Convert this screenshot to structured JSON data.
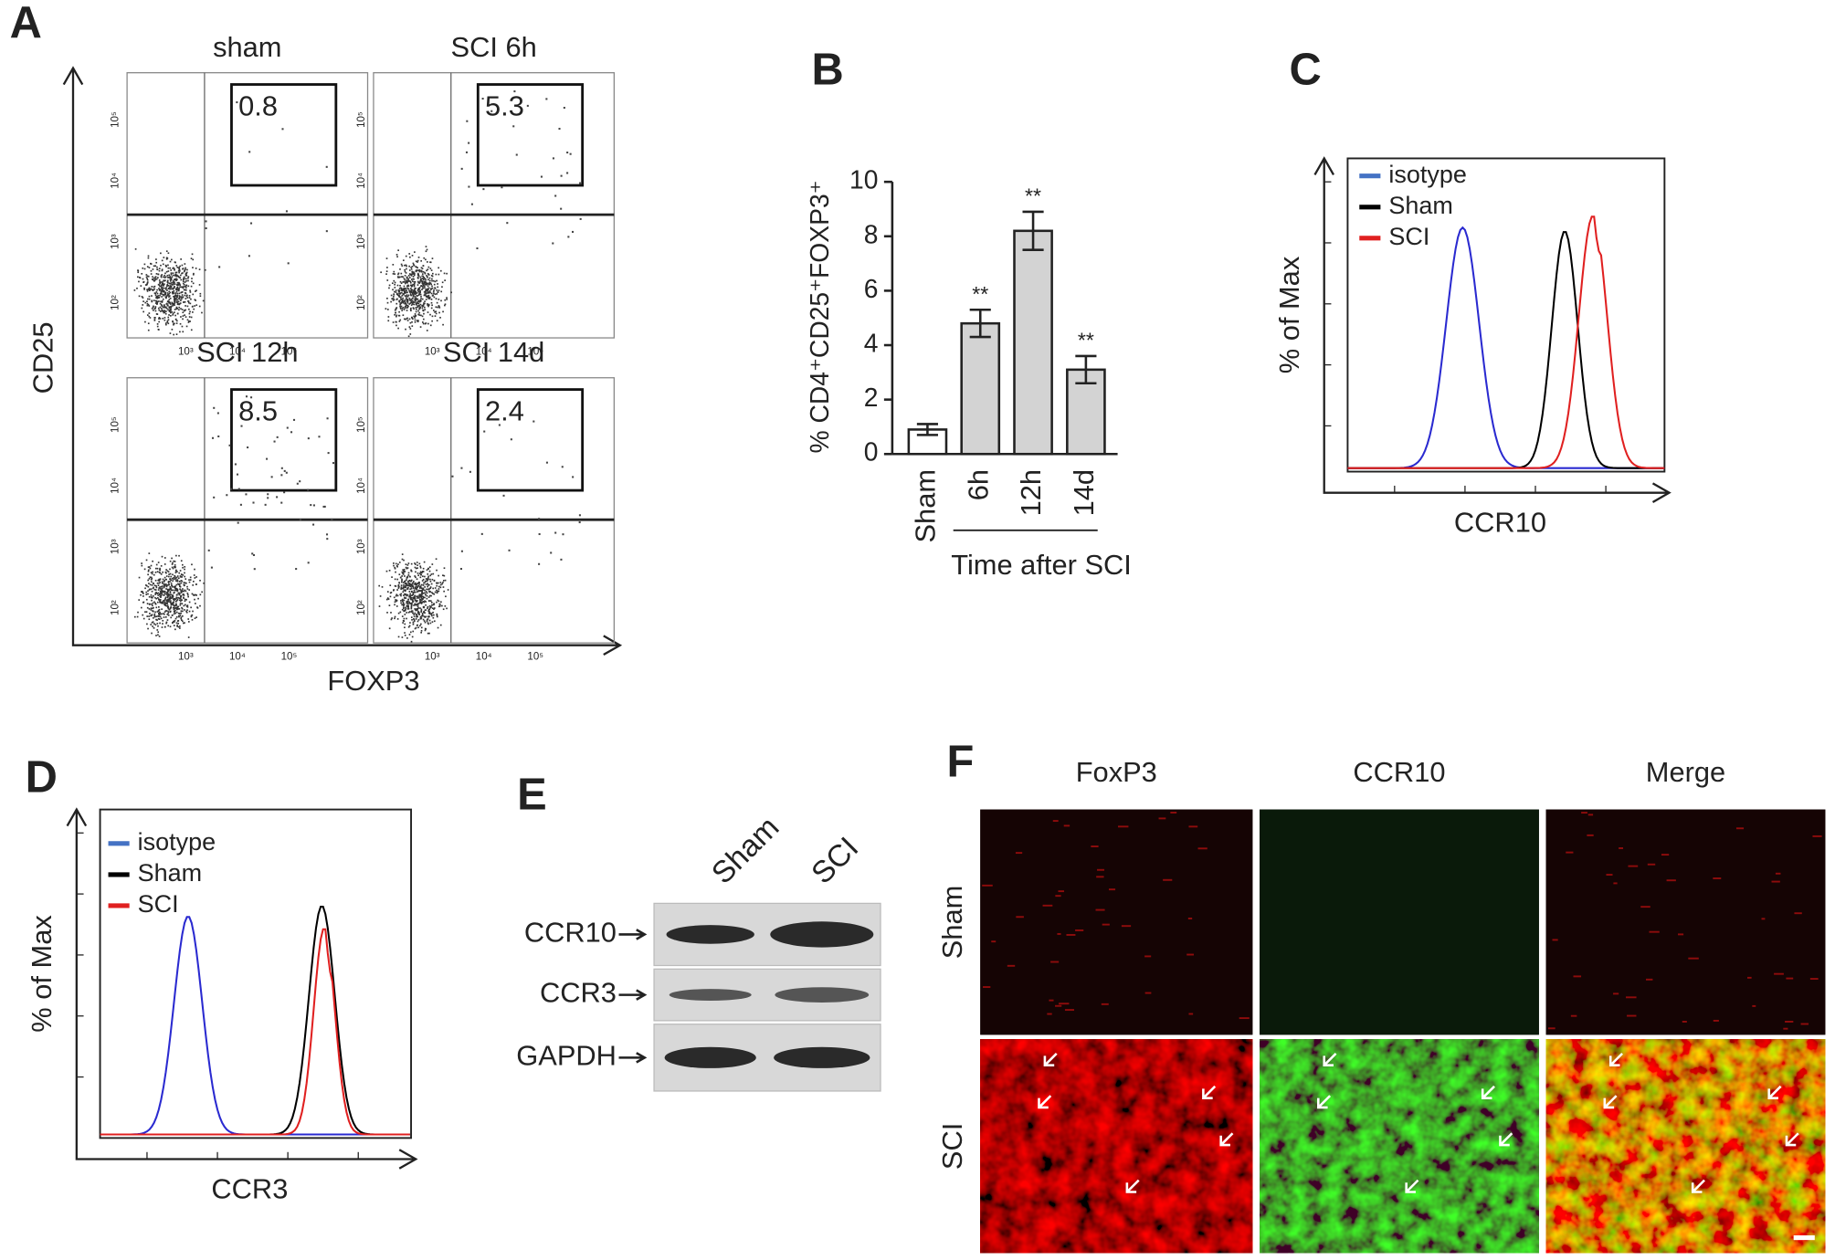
{
  "chart_data": {
    "type": "bar",
    "label": "B",
    "ylabel": "% CD4⁺CD25⁺FOXP3⁺",
    "xlabel": "Time after SCI",
    "categories": [
      "Sham",
      "6h",
      "12h",
      "14d"
    ],
    "values": [
      0.9,
      4.8,
      8.2,
      3.1
    ],
    "errors": [
      0.2,
      0.5,
      0.7,
      0.5
    ],
    "significance": [
      null,
      "**",
      "**",
      "**"
    ],
    "colors": [
      "#ffffff",
      "#d3d3d3",
      "#d3d3d3",
      "#d3d3d3"
    ],
    "ylim": [
      0,
      10
    ],
    "yticks": [
      0,
      2,
      4,
      6,
      8,
      10
    ]
  },
  "panels": {
    "A": {
      "label": "A",
      "ylabel": "CD25",
      "xlabel": "FOXP3",
      "ticks": [
        "10²",
        "10³",
        "10⁴",
        "10⁵"
      ],
      "plots": [
        {
          "title": "sham",
          "gate": "0.8"
        },
        {
          "title": "SCI 6h",
          "gate": "5.3"
        },
        {
          "title": "SCI 12h",
          "gate": "8.5"
        },
        {
          "title": "SCI 14d",
          "gate": "2.4"
        }
      ]
    },
    "C": {
      "label": "C",
      "ylabel": "% of Max",
      "xlabel": "CCR10",
      "legend": [
        {
          "name": "isotype",
          "color": "#4472c4"
        },
        {
          "name": "Sham",
          "color": "#000000"
        },
        {
          "name": "SCI",
          "color": "#e02020"
        }
      ]
    },
    "D": {
      "label": "D",
      "ylabel": "% of Max",
      "xlabel": "CCR3",
      "legend": [
        {
          "name": "isotype",
          "color": "#4472c4"
        },
        {
          "name": "Sham",
          "color": "#000000"
        },
        {
          "name": "SCI",
          "color": "#e02020"
        }
      ]
    },
    "E": {
      "label": "E",
      "lanes": [
        "Sham",
        "SCI"
      ],
      "rows": [
        "CCR10",
        "CCR3",
        "GAPDH"
      ]
    },
    "F": {
      "label": "F",
      "columns": [
        "FoxP3",
        "CCR10",
        "Merge"
      ],
      "rows": [
        "Sham",
        "SCI"
      ]
    }
  }
}
